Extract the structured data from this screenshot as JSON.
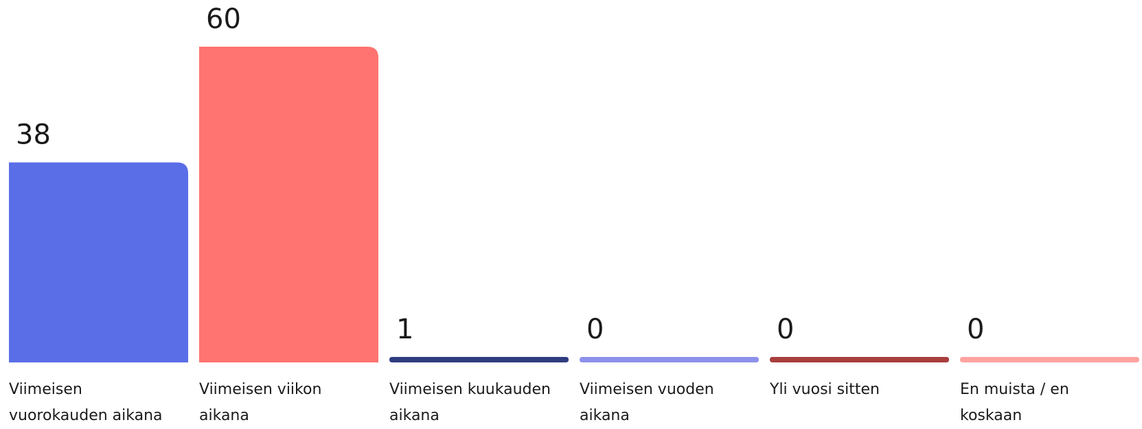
{
  "chart_data": {
    "type": "bar",
    "categories": [
      "Viimeisen vuorokauden aikana",
      "Viimeisen viikon aikana",
      "Viimeisen kuukauden aikana",
      "Viimeisen vuoden aikana",
      "Yli vuosi sitten",
      "En muista / en koskaan"
    ],
    "values": [
      38,
      60,
      1,
      0,
      0,
      0
    ],
    "colors": [
      "#5a6ee8",
      "#ff7471",
      "#2f3d80",
      "#8e91ea",
      "#a83e3e",
      "#ffa3a0"
    ]
  }
}
